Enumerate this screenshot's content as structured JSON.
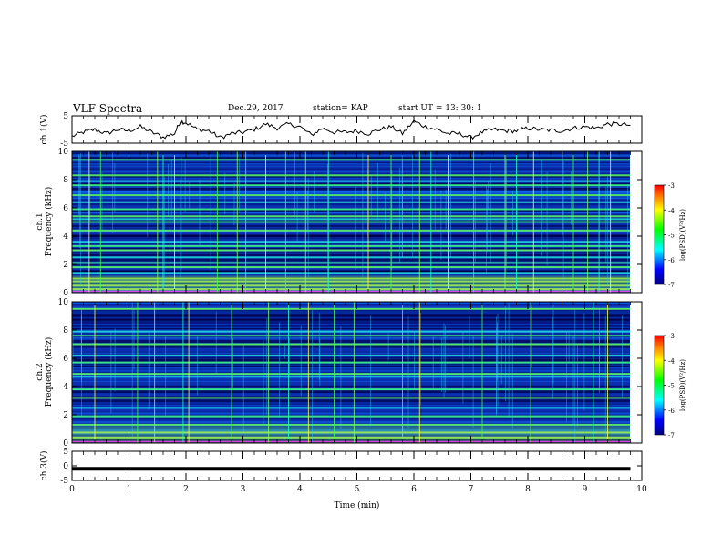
{
  "header": {
    "title": "VLF Spectra",
    "date": "Dec.29, 2017",
    "station": "station= KAP",
    "start": "start  UT =   13: 30: 1"
  },
  "chart_data": [
    {
      "type": "line",
      "panel": "waveform-ch1",
      "ylabel": "ch.1(V)",
      "yticks": [
        "5",
        "-5"
      ],
      "ylim": [
        -5,
        5
      ],
      "x": [
        0.0,
        0.2,
        0.4,
        0.6,
        0.8,
        1.0,
        1.2,
        1.4,
        1.6,
        1.8,
        1.9,
        2.0,
        2.2,
        2.4,
        2.6,
        2.8,
        3.0,
        3.2,
        3.4,
        3.6,
        3.8,
        4.0,
        4.2,
        4.4,
        4.6,
        4.8,
        5.0,
        5.2,
        5.4,
        5.6,
        5.8,
        6.0,
        6.2,
        6.4,
        6.6,
        6.8,
        7.0,
        7.2,
        7.4,
        7.6,
        7.8,
        8.0,
        8.2,
        8.4,
        8.6,
        8.8,
        9.0,
        9.2,
        9.4,
        9.6,
        9.8
      ],
      "y": [
        -2.5,
        -1,
        0,
        -1.5,
        0,
        -0.5,
        1,
        -1,
        -2.8,
        -1.5,
        3,
        2.5,
        0,
        -0.5,
        -3,
        -1.5,
        -1,
        0,
        2,
        0.5,
        2,
        1,
        -2,
        0.5,
        -1,
        -1,
        -0.5,
        -1.5,
        0,
        1,
        -1.5,
        3,
        1,
        0,
        -1.5,
        -1.5,
        -3,
        -1,
        0,
        -0.5,
        -0.5,
        0.5,
        0,
        -0.3,
        -0.5,
        0.5,
        1,
        0.5,
        2,
        2,
        1.5
      ]
    },
    {
      "type": "heatmap",
      "panel": "spectrogram-ch1",
      "ylabel": "ch.1",
      "ylabel2": "Frequency  (kHz)",
      "yticks": [
        "0",
        "2",
        "4",
        "6",
        "8",
        "10"
      ],
      "ylim": [
        0,
        10
      ],
      "xlim": [
        0,
        9.8
      ],
      "colorbar": {
        "label": "log(PSD)(V²/Hz)",
        "ticks": [
          "-3",
          "-4",
          "-5",
          "-6",
          "-7"
        ],
        "range": [
          -7,
          -3
        ]
      },
      "lines_kHz": [
        0.25,
        0.5,
        0.8,
        1.0,
        1.4,
        1.8,
        2.1,
        2.5,
        3.0,
        3.3,
        3.6,
        4.4,
        5.0,
        5.2,
        5.4,
        5.9,
        6.4,
        6.9,
        7.6,
        7.9,
        8.3,
        9.4
      ],
      "spikes_min": [
        0.3,
        0.5,
        1.5,
        1.6,
        1.8,
        2.55,
        2.9,
        3.05,
        3.4,
        3.75,
        4.1,
        4.5,
        5.2,
        5.6,
        6.1,
        6.3,
        6.6,
        7.05,
        7.6,
        7.8,
        8.1,
        8.8,
        9.05,
        9.25,
        9.45
      ]
    },
    {
      "type": "heatmap",
      "panel": "spectrogram-ch2",
      "ylabel": "ch.2",
      "ylabel2": "Frequency  (kHz)",
      "yticks": [
        "0",
        "2",
        "4",
        "6",
        "8",
        "10"
      ],
      "ylim": [
        0,
        10
      ],
      "xlim": [
        0,
        9.8
      ],
      "colorbar": {
        "label": "log(PSD)(V²/Hz)",
        "ticks": [
          "-3",
          "-4",
          "-5",
          "-6",
          "-7"
        ],
        "range": [
          -7,
          -3
        ]
      },
      "lines_kHz": [
        0.4,
        0.75,
        1.3,
        1.9,
        2.5,
        3.2,
        3.8,
        4.7,
        4.9,
        5.7,
        6.2,
        7.0,
        7.6,
        7.9,
        9.5
      ],
      "spikes_min": [
        0.4,
        1.15,
        1.45,
        1.95,
        2.05,
        2.8,
        3.45,
        3.8,
        4.15,
        4.6,
        4.95,
        5.8,
        6.1,
        7.2,
        8.05,
        9.15,
        9.4
      ]
    },
    {
      "type": "line",
      "panel": "waveform-ch3",
      "ylabel": "ch.3(V)",
      "yticks": [
        "5",
        "0",
        "-5"
      ],
      "ylim": [
        -5,
        5
      ],
      "x": [
        0,
        9.8
      ],
      "y": [
        -1,
        -1
      ]
    }
  ],
  "xaxis": {
    "label": "Time  (min)",
    "ticks": [
      "0",
      "1",
      "2",
      "3",
      "4",
      "5",
      "6",
      "7",
      "8",
      "9",
      "10"
    ],
    "lim": [
      0,
      10
    ]
  },
  "colors": {
    "frame": "#000000",
    "background": "#ffffff",
    "line": "#000000"
  }
}
